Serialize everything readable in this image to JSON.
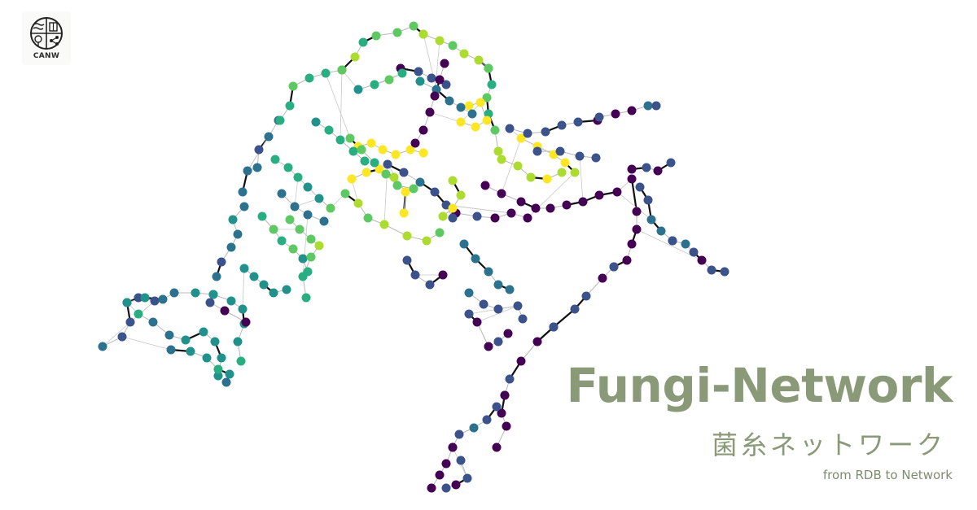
{
  "logo": {
    "text": "CANW",
    "icon": "canw-logo-icon"
  },
  "title": "Fungi-Network",
  "subtitle_jp": "菌糸ネットワーク",
  "tagline": "from RDB to Network",
  "palette": [
    "#440154",
    "#3b528b",
    "#2c728e",
    "#21918c",
    "#28ae80",
    "#5ec962",
    "#addc30",
    "#fde725"
  ]
}
